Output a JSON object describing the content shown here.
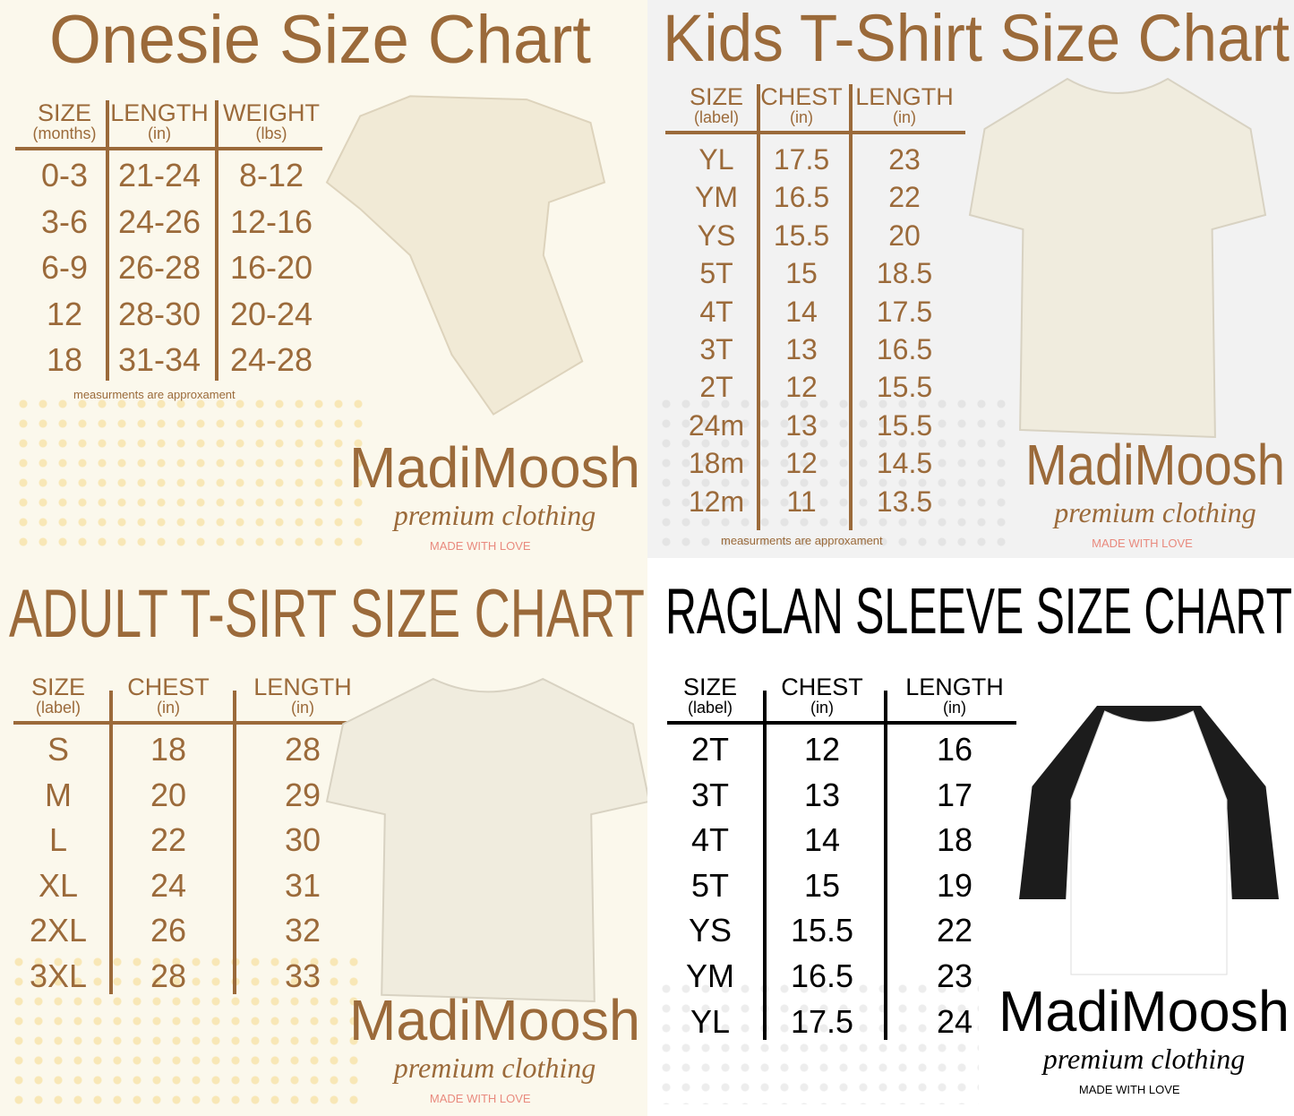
{
  "colors": {
    "brown": "#9b6a3a",
    "black": "#000000",
    "pink": "#e98a7e"
  },
  "panels": [
    {
      "id": "onesie",
      "title": "Onesie Size Chart",
      "headers": [
        {
          "main": "SIZE",
          "sub": "(months)"
        },
        {
          "main": "LENGTH",
          "sub": "(in)"
        },
        {
          "main": "WEIGHT",
          "sub": "(lbs)"
        }
      ],
      "rows": [
        [
          "0-3",
          "21-24",
          "8-12"
        ],
        [
          "3-6",
          "24-26",
          "12-16"
        ],
        [
          "6-9",
          "26-28",
          "16-20"
        ],
        [
          "12",
          "28-30",
          "20-24"
        ],
        [
          "18",
          "31-34",
          "24-28"
        ]
      ],
      "note": "measurments are approxament",
      "garment": "onesie",
      "logo": {
        "brand": "MadiMoosh",
        "tagline": "premium clothing",
        "slogan": "MADE WITH LOVE"
      }
    },
    {
      "id": "kids",
      "title": "Kids T-Shirt Size Chart",
      "headers": [
        {
          "main": "SIZE",
          "sub": "(label)"
        },
        {
          "main": "CHEST",
          "sub": "(in)"
        },
        {
          "main": "LENGTH",
          "sub": "(in)"
        }
      ],
      "rows": [
        [
          "YL",
          "17.5",
          "23"
        ],
        [
          "YM",
          "16.5",
          "22"
        ],
        [
          "YS",
          "15.5",
          "20"
        ],
        [
          "5T",
          "15",
          "18.5"
        ],
        [
          "4T",
          "14",
          "17.5"
        ],
        [
          "3T",
          "13",
          "16.5"
        ],
        [
          "2T",
          "12",
          "15.5"
        ],
        [
          "24m",
          "13",
          "15.5"
        ],
        [
          "18m",
          "12",
          "14.5"
        ],
        [
          "12m",
          "11",
          "13.5"
        ]
      ],
      "note": "measurments are approxament",
      "garment": "t-shirt",
      "logo": {
        "brand": "MadiMoosh",
        "tagline": "premium clothing",
        "slogan": "MADE WITH LOVE"
      }
    },
    {
      "id": "adult",
      "title": "ADULT T-SIRT SIZE CHART",
      "headers": [
        {
          "main": "SIZE",
          "sub": "(label)"
        },
        {
          "main": "CHEST",
          "sub": "(in)"
        },
        {
          "main": "LENGTH",
          "sub": "(in)"
        }
      ],
      "rows": [
        [
          "S",
          "18",
          "28"
        ],
        [
          "M",
          "20",
          "29"
        ],
        [
          "L",
          "22",
          "30"
        ],
        [
          "XL",
          "24",
          "31"
        ],
        [
          "2XL",
          "26",
          "32"
        ],
        [
          "3XL",
          "28",
          "33"
        ]
      ],
      "garment": "t-shirt",
      "logo": {
        "brand": "MadiMoosh",
        "tagline": "premium clothing",
        "slogan": "MADE WITH LOVE"
      }
    },
    {
      "id": "raglan",
      "title": "RAGLAN SLEEVE SIZE CHART",
      "headers": [
        {
          "main": "SIZE",
          "sub": "(label)"
        },
        {
          "main": "CHEST",
          "sub": "(in)"
        },
        {
          "main": "LENGTH",
          "sub": "(in)"
        }
      ],
      "rows": [
        [
          "2T",
          "12",
          "16"
        ],
        [
          "3T",
          "13",
          "17"
        ],
        [
          "4T",
          "14",
          "18"
        ],
        [
          "5T",
          "15",
          "19"
        ],
        [
          "YS",
          "15.5",
          "22"
        ],
        [
          "YM",
          "16.5",
          "23"
        ],
        [
          "YL",
          "17.5",
          "24"
        ]
      ],
      "garment": "raglan-shirt",
      "logo": {
        "brand": "MadiMoosh",
        "tagline": "premium clothing",
        "slogan": "MADE WITH LOVE"
      }
    }
  ]
}
